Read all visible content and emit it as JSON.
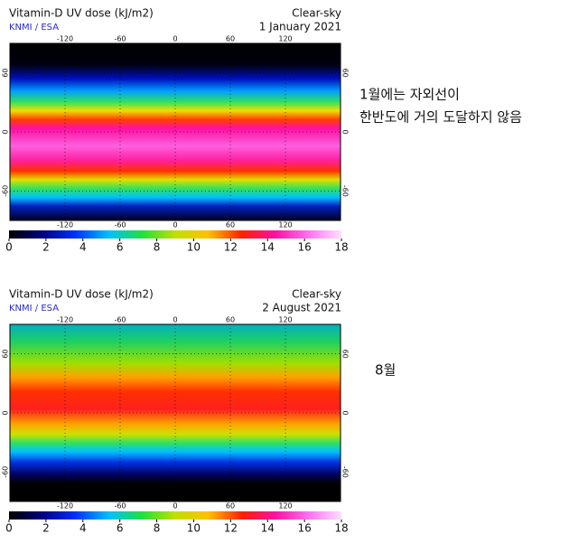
{
  "panels": [
    {
      "title": "Vitamin-D UV dose (kJ/m2)",
      "source": "KNMI / ESA",
      "condition": "Clear-sky",
      "date": "1 January 2021",
      "lon_ticks": [
        -120,
        -60,
        0,
        60,
        120
      ],
      "lat_ticks": [
        60,
        0,
        -60
      ],
      "colorbar_ticks": [
        0,
        2,
        4,
        6,
        8,
        10,
        12,
        14,
        16,
        18
      ],
      "note": [
        "1월에는 자외선이",
        "한반도에 거의 도달하지 않음"
      ]
    },
    {
      "title": "Vitamin-D UV dose (kJ/m2)",
      "source": "KNMI / ESA",
      "condition": "Clear-sky",
      "date": "2 August 2021",
      "lon_ticks": [
        -120,
        -60,
        0,
        60,
        120
      ],
      "lat_ticks": [
        60,
        0,
        -60
      ],
      "colorbar_ticks": [
        0,
        2,
        4,
        6,
        8,
        10,
        12,
        14,
        16,
        18
      ],
      "note": [
        "8월"
      ]
    }
  ]
}
